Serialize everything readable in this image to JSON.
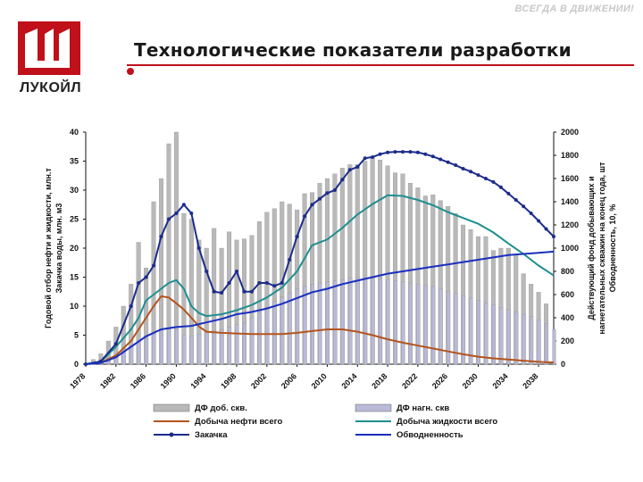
{
  "header": {
    "slogan": "ВСЕГДА В ДВИЖЕНИИ!",
    "title": "Технологические показатели разработки",
    "logo_text": "ЛУКОЙЛ",
    "accent_color": "#c0101a"
  },
  "chart_data": {
    "type": "bar",
    "left_axis_label_line1": "Годовой отбор нефти и жидкости, млн.т",
    "left_axis_label_line2": "Закачка воды, млн. м3",
    "right_axis_label_line1": "Действующий фонд добывающих и",
    "right_axis_label_line2": "нагнетательных скважин на конец года, шт",
    "right_axis_label_line3": "Обводненность, 10, %",
    "ylim_left": [
      0,
      40
    ],
    "yticks_left": [
      "0",
      "5",
      "10",
      "15",
      "20",
      "25",
      "30",
      "35",
      "40"
    ],
    "ylim_right": [
      0,
      2000
    ],
    "yticks_right": [
      "0",
      "200",
      "400",
      "600",
      "800",
      "1000",
      "1200",
      "1400",
      "1600",
      "1800",
      "2000"
    ],
    "x_range": [
      1978,
      2040
    ],
    "xtick_labels": [
      "1978",
      "1982",
      "1986",
      "1990",
      "1994",
      "1998",
      "2002",
      "2006",
      "2010",
      "2014",
      "2018",
      "2022",
      "2026",
      "2030",
      "2034",
      "2038"
    ],
    "legend": [
      {
        "label": "ДФ доб. скв.",
        "kind": "bar",
        "color": "#b9b9b9"
      },
      {
        "label": "ДФ нагн. скв",
        "kind": "bar",
        "color": "#b9b9d8"
      },
      {
        "label": "Добыча нефти всего",
        "kind": "line",
        "color": "#b3541e"
      },
      {
        "label": "Добыча жидкости всего",
        "kind": "line",
        "color": "#1f8f8f"
      },
      {
        "label": "Закачка",
        "kind": "line-marker",
        "color": "#1c2c8c"
      },
      {
        "label": "Обводненность",
        "kind": "line",
        "color": "#1a2fbf"
      }
    ],
    "series": [
      {
        "name": "ДФ доб. скв.",
        "axis": "right",
        "x": [
          1978,
          1979,
          1980,
          1981,
          1982,
          1983,
          1984,
          1985,
          1986,
          1987,
          1988,
          1989,
          1990,
          1991,
          1992,
          1993,
          1994,
          1995,
          1996,
          1997,
          1998,
          1999,
          2000,
          2001,
          2002,
          2003,
          2004,
          2005,
          2006,
          2007,
          2008,
          2009,
          2010,
          2011,
          2012,
          2013,
          2014,
          2015,
          2016,
          2017,
          2018,
          2019,
          2020,
          2021,
          2022,
          2023,
          2024,
          2025,
          2026,
          2027,
          2028,
          2029,
          2030,
          2031,
          2032,
          2033,
          2034,
          2035,
          2036,
          2037,
          2038,
          2039,
          2040
        ],
        "values": [
          0,
          40,
          90,
          200,
          320,
          500,
          690,
          1050,
          830,
          1400,
          1600,
          1900,
          2000,
          1300,
          1250,
          1070,
          1000,
          1170,
          1000,
          1140,
          1070,
          1080,
          1110,
          1230,
          1310,
          1340,
          1400,
          1380,
          1330,
          1470,
          1480,
          1560,
          1600,
          1640,
          1690,
          1720,
          1720,
          1750,
          1790,
          1760,
          1710,
          1650,
          1640,
          1560,
          1520,
          1450,
          1460,
          1410,
          1360,
          1300,
          1200,
          1160,
          1100,
          1100,
          980,
          1000,
          1000,
          950,
          780,
          690,
          620,
          520,
          0
        ]
      },
      {
        "name": "ДФ нагн. скв",
        "axis": "right",
        "x": [
          1978,
          1979,
          1980,
          1981,
          1982,
          1983,
          1984,
          1985,
          1986,
          1987,
          1988,
          1989,
          1990,
          1991,
          1992,
          1993,
          1994,
          1995,
          1996,
          1997,
          1998,
          1999,
          2000,
          2001,
          2002,
          2003,
          2004,
          2005,
          2006,
          2007,
          2008,
          2009,
          2010,
          2011,
          2012,
          2013,
          2014,
          2015,
          2016,
          2017,
          2018,
          2019,
          2020,
          2021,
          2022,
          2023,
          2024,
          2025,
          2026,
          2027,
          2028,
          2029,
          2030,
          2031,
          2032,
          2033,
          2034,
          2035,
          2036,
          2037,
          2038,
          2039,
          2040
        ],
        "values": [
          0,
          5,
          10,
          30,
          70,
          110,
          150,
          200,
          220,
          260,
          290,
          300,
          300,
          250,
          240,
          260,
          270,
          290,
          300,
          320,
          340,
          360,
          400,
          440,
          490,
          540,
          580,
          610,
          650,
          670,
          690,
          700,
          710,
          720,
          730,
          740,
          740,
          740,
          740,
          740,
          730,
          720,
          710,
          700,
          690,
          680,
          670,
          650,
          630,
          610,
          590,
          570,
          550,
          530,
          510,
          490,
          470,
          450,
          430,
          410,
          380,
          350,
          300
        ]
      },
      {
        "name": "Добыча нефти всего",
        "axis": "left",
        "x": [
          1978,
          1980,
          1982,
          1984,
          1985,
          1986,
          1987,
          1988,
          1989,
          1990,
          1991,
          1992,
          1993,
          1994,
          1996,
          1998,
          2000,
          2002,
          2004,
          2006,
          2008,
          2010,
          2012,
          2014,
          2016,
          2018,
          2020,
          2022,
          2024,
          2026,
          2028,
          2030,
          2032,
          2034,
          2036,
          2038,
          2040
        ],
        "values": [
          0,
          0.3,
          1.5,
          4,
          6,
          8,
          10,
          11.7,
          11.5,
          10.5,
          9.4,
          8,
          6.5,
          5.6,
          5.4,
          5.3,
          5.2,
          5.2,
          5.2,
          5.4,
          5.7,
          6.0,
          6.0,
          5.6,
          5.0,
          4.3,
          3.7,
          3.2,
          2.7,
          2.2,
          1.7,
          1.3,
          1.0,
          0.8,
          0.6,
          0.4,
          0.3
        ]
      },
      {
        "name": "Добыча жидкости всего",
        "axis": "left",
        "x": [
          1978,
          1980,
          1982,
          1984,
          1985,
          1986,
          1987,
          1988,
          1989,
          1990,
          1991,
          1992,
          1993,
          1994,
          1996,
          1998,
          2000,
          2002,
          2004,
          2006,
          2008,
          2010,
          2012,
          2014,
          2016,
          2018,
          2020,
          2022,
          2024,
          2026,
          2028,
          2030,
          2032,
          2034,
          2036,
          2038,
          2040
        ],
        "values": [
          0,
          0.4,
          3,
          6,
          8,
          11,
          12,
          13,
          14,
          14.5,
          13,
          10,
          8.8,
          8.3,
          8.6,
          9.3,
          10.2,
          11.5,
          13.2,
          16,
          20.5,
          21.5,
          23.5,
          25.8,
          27.6,
          29.1,
          29,
          28.3,
          27.4,
          26.2,
          25.2,
          24.2,
          22.7,
          20.8,
          19,
          17,
          15.3
        ]
      },
      {
        "name": "Закачка",
        "axis": "left",
        "x": [
          1978,
          1980,
          1982,
          1984,
          1985,
          1986,
          1987,
          1988,
          1989,
          1990,
          1991,
          1992,
          1993,
          1994,
          1995,
          1996,
          1997,
          1998,
          1999,
          2000,
          2001,
          2002,
          2003,
          2004,
          2005,
          2006,
          2007,
          2008,
          2009,
          2010,
          2011,
          2012,
          2013,
          2014,
          2015,
          2016,
          2017,
          2018,
          2019,
          2020,
          2021,
          2022,
          2023,
          2024,
          2025,
          2026,
          2027,
          2028,
          2029,
          2030,
          2031,
          2032,
          2033,
          2034,
          2035,
          2036,
          2037,
          2038,
          2039,
          2040
        ],
        "values": [
          0,
          0.5,
          3.5,
          10,
          14,
          15,
          17,
          22,
          25,
          26,
          27.5,
          26,
          20,
          16,
          12.5,
          12.3,
          14,
          16,
          12.5,
          12.5,
          14,
          14,
          13.5,
          14,
          18,
          22,
          25.5,
          27.5,
          28.5,
          29.5,
          30,
          31.8,
          33.5,
          34,
          35.5,
          35.7,
          36.2,
          36.5,
          36.6,
          36.6,
          36.6,
          36.5,
          36.2,
          35.8,
          35.3,
          34.8,
          34.3,
          33.7,
          33.2,
          32.6,
          32,
          31.4,
          30.5,
          29.4,
          28.3,
          27.2,
          26,
          24.7,
          23.3,
          22
        ]
      },
      {
        "name": "Обводненность",
        "axis": "right",
        "x": [
          1978,
          1980,
          1982,
          1984,
          1986,
          1988,
          1990,
          1992,
          1994,
          1996,
          1998,
          2000,
          2002,
          2004,
          2006,
          2008,
          2010,
          2012,
          2014,
          2016,
          2018,
          2020,
          2022,
          2024,
          2026,
          2028,
          2030,
          2032,
          2034,
          2036,
          2038,
          2040
        ],
        "values": [
          0,
          10,
          60,
          150,
          240,
          300,
          320,
          330,
          360,
          390,
          430,
          450,
          480,
          520,
          570,
          620,
          650,
          690,
          720,
          750,
          780,
          800,
          820,
          840,
          860,
          880,
          900,
          920,
          940,
          950,
          960,
          970
        ]
      }
    ]
  }
}
